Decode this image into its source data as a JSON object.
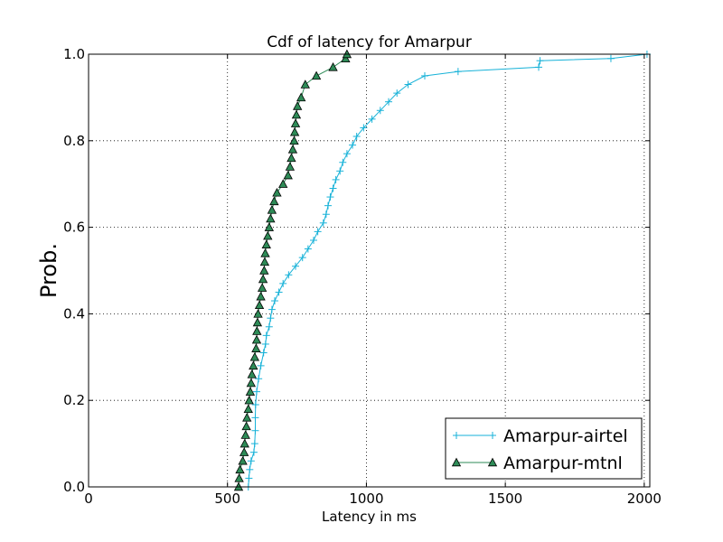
{
  "chart_data": {
    "type": "line",
    "title": "Cdf of latency for Amarpur",
    "xlabel": "Latency in ms",
    "ylabel": "Prob.",
    "xlim": [
      0,
      2020
    ],
    "ylim": [
      0.0,
      1.0
    ],
    "xticks": [
      "0",
      "500",
      "1000",
      "1500",
      "2000"
    ],
    "yticks": [
      "0.0",
      "0.2",
      "0.4",
      "0.6",
      "0.8",
      "1.0"
    ],
    "grid": true,
    "legend_position": "lower-right",
    "series": [
      {
        "name": "Amarpur-airtel",
        "color": "#17b2d8",
        "marker": "plus",
        "points": [
          [
            575,
            0.0
          ],
          [
            577,
            0.02
          ],
          [
            580,
            0.04
          ],
          [
            585,
            0.06
          ],
          [
            595,
            0.08
          ],
          [
            598,
            0.1
          ],
          [
            600,
            0.13
          ],
          [
            600,
            0.16
          ],
          [
            601,
            0.19
          ],
          [
            605,
            0.22
          ],
          [
            612,
            0.25
          ],
          [
            620,
            0.28
          ],
          [
            630,
            0.31
          ],
          [
            637,
            0.33
          ],
          [
            640,
            0.35
          ],
          [
            650,
            0.37
          ],
          [
            655,
            0.39
          ],
          [
            660,
            0.41
          ],
          [
            670,
            0.43
          ],
          [
            685,
            0.45
          ],
          [
            700,
            0.47
          ],
          [
            720,
            0.49
          ],
          [
            745,
            0.51
          ],
          [
            770,
            0.53
          ],
          [
            790,
            0.55
          ],
          [
            810,
            0.57
          ],
          [
            825,
            0.59
          ],
          [
            845,
            0.61
          ],
          [
            855,
            0.63
          ],
          [
            862,
            0.65
          ],
          [
            870,
            0.67
          ],
          [
            880,
            0.69
          ],
          [
            890,
            0.71
          ],
          [
            905,
            0.73
          ],
          [
            915,
            0.75
          ],
          [
            930,
            0.77
          ],
          [
            950,
            0.79
          ],
          [
            965,
            0.81
          ],
          [
            990,
            0.83
          ],
          [
            1020,
            0.85
          ],
          [
            1050,
            0.87
          ],
          [
            1080,
            0.89
          ],
          [
            1110,
            0.91
          ],
          [
            1150,
            0.93
          ],
          [
            1210,
            0.95
          ],
          [
            1330,
            0.96
          ],
          [
            1620,
            0.97
          ],
          [
            1625,
            0.985
          ],
          [
            1880,
            0.99
          ],
          [
            2010,
            1.0
          ]
        ]
      },
      {
        "name": "Amarpur-mtnl",
        "color": "#2e8b57",
        "marker": "triangle",
        "points": [
          [
            540,
            0.0
          ],
          [
            542,
            0.02
          ],
          [
            545,
            0.04
          ],
          [
            555,
            0.06
          ],
          [
            560,
            0.08
          ],
          [
            562,
            0.1
          ],
          [
            565,
            0.12
          ],
          [
            568,
            0.14
          ],
          [
            570,
            0.16
          ],
          [
            575,
            0.18
          ],
          [
            578,
            0.2
          ],
          [
            582,
            0.22
          ],
          [
            585,
            0.24
          ],
          [
            588,
            0.26
          ],
          [
            593,
            0.28
          ],
          [
            598,
            0.3
          ],
          [
            603,
            0.32
          ],
          [
            605,
            0.34
          ],
          [
            606,
            0.36
          ],
          [
            608,
            0.38
          ],
          [
            610,
            0.4
          ],
          [
            615,
            0.42
          ],
          [
            620,
            0.44
          ],
          [
            625,
            0.46
          ],
          [
            628,
            0.48
          ],
          [
            632,
            0.5
          ],
          [
            634,
            0.52
          ],
          [
            636,
            0.54
          ],
          [
            640,
            0.56
          ],
          [
            645,
            0.58
          ],
          [
            650,
            0.6
          ],
          [
            655,
            0.62
          ],
          [
            660,
            0.64
          ],
          [
            668,
            0.66
          ],
          [
            678,
            0.68
          ],
          [
            700,
            0.7
          ],
          [
            718,
            0.72
          ],
          [
            725,
            0.74
          ],
          [
            730,
            0.76
          ],
          [
            735,
            0.78
          ],
          [
            740,
            0.8
          ],
          [
            742,
            0.82
          ],
          [
            745,
            0.84
          ],
          [
            748,
            0.86
          ],
          [
            752,
            0.88
          ],
          [
            765,
            0.9
          ],
          [
            780,
            0.93
          ],
          [
            820,
            0.95
          ],
          [
            880,
            0.97
          ],
          [
            925,
            0.99
          ],
          [
            930,
            1.0
          ]
        ]
      }
    ]
  }
}
